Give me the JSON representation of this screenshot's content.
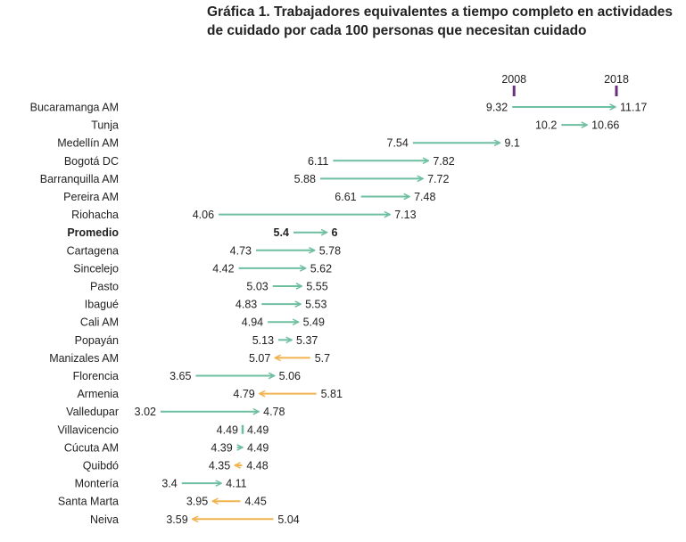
{
  "title": "Gráfica 1. Trabajadores equivalentes a tiempo completo en actividades de cuidado por cada 100 personas que necesitan cuidado",
  "chart_data": {
    "type": "dumbbell-arrow",
    "title": "Gráfica 1. Trabajadores equivalentes a tiempo completo en actividades de cuidado por cada 100 personas que necesitan cuidado",
    "year_labels": [
      "2008",
      "2018"
    ],
    "highlight_category": "Promedio",
    "colors": {
      "increase": "#6dbfa0",
      "decrease": "#f2b24d",
      "highlight": "#6b2f7e",
      "marker": "#6b2f7e",
      "text": "#222222"
    },
    "rows": [
      {
        "city": "Bucaramanga AM",
        "v2008": 9.32,
        "v2018": 11.17
      },
      {
        "city": "Tunja",
        "v2008": 10.2,
        "v2018": 10.66
      },
      {
        "city": "Medellín AM",
        "v2008": 7.54,
        "v2018": 9.1
      },
      {
        "city": "Bogotá DC",
        "v2008": 6.11,
        "v2018": 7.82
      },
      {
        "city": "Barranquilla AM",
        "v2008": 5.88,
        "v2018": 7.72
      },
      {
        "city": "Pereira AM",
        "v2008": 6.61,
        "v2018": 7.48
      },
      {
        "city": "Riohacha",
        "v2008": 4.06,
        "v2018": 7.13
      },
      {
        "city": "Promedio",
        "v2008": 5.4,
        "v2018": 6
      },
      {
        "city": "Cartagena",
        "v2008": 4.73,
        "v2018": 5.78
      },
      {
        "city": "Sincelejo",
        "v2008": 4.42,
        "v2018": 5.62
      },
      {
        "city": "Pasto",
        "v2008": 5.03,
        "v2018": 5.55
      },
      {
        "city": "Ibagué",
        "v2008": 4.83,
        "v2018": 5.53
      },
      {
        "city": "Cali AM",
        "v2008": 4.94,
        "v2018": 5.49
      },
      {
        "city": "Popayán",
        "v2008": 5.13,
        "v2018": 5.37
      },
      {
        "city": "Manizales AM",
        "v2008": 5.7,
        "v2018": 5.07
      },
      {
        "city": "Florencia",
        "v2008": 3.65,
        "v2018": 5.06
      },
      {
        "city": "Armenia",
        "v2008": 5.81,
        "v2018": 4.79
      },
      {
        "city": "Valledupar",
        "v2008": 3.02,
        "v2018": 4.78
      },
      {
        "city": "Villavicencio",
        "v2008": 4.49,
        "v2018": 4.49
      },
      {
        "city": "Cúcuta AM",
        "v2008": 4.39,
        "v2018": 4.49
      },
      {
        "city": "Quibdó",
        "v2008": 4.48,
        "v2018": 4.35
      },
      {
        "city": "Montería",
        "v2008": 3.4,
        "v2018": 4.11
      },
      {
        "city": "Santa Marta",
        "v2008": 4.45,
        "v2018": 3.95
      },
      {
        "city": "Neiva",
        "v2008": 5.04,
        "v2018": 3.59
      }
    ]
  }
}
